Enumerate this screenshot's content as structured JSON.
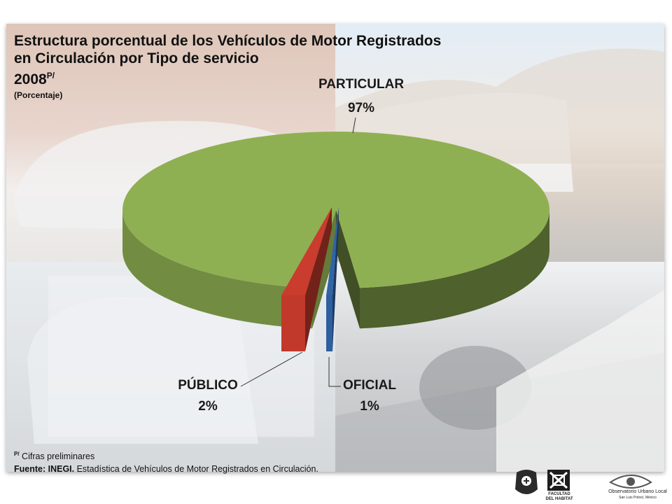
{
  "title": {
    "line1": "Estructura porcentual  de  los Vehículos de Motor  Registrados",
    "line2": "en Circulación por Tipo de servicio",
    "year": "2008",
    "year_superscript": "P/",
    "units": "(Porcentaje)"
  },
  "chart_data": {
    "type": "pie",
    "title": "Estructura porcentual  de  los Vehículos de Motor  Registrados en Circulación por Tipo de servicio 2008P/",
    "units": "(Porcentaje)",
    "categories": [
      "PARTICULAR",
      "PÚBLICO",
      "OFICIAL"
    ],
    "values": [
      97,
      2,
      1
    ],
    "value_labels": [
      "97%",
      "2%",
      "1%"
    ],
    "colors": [
      "#8fb052",
      "#c0392b",
      "#2e5f9e"
    ],
    "style": "3d-exploded",
    "legend": "none"
  },
  "footer": {
    "note_marker": "P/",
    "note_text": "Cifras preliminares",
    "source_prefix": "Fuente: INEGI.",
    "source_text": " Estadística de Vehículos de Motor Registrados en Circulación."
  },
  "logos": {
    "faculty": "FACULTAD DEL HABITAT",
    "observatory": "Observatorio Urbano Local",
    "observatory_sub": "San Luis Potosí, México"
  }
}
